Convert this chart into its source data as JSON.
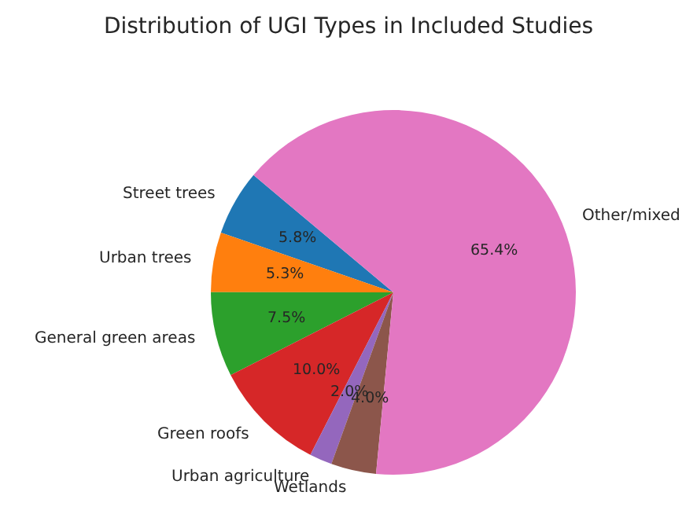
{
  "chart_data": {
    "type": "pie",
    "title": "Distribution of UGI Types in Included Studies",
    "categories": [
      "Street trees",
      "Urban trees",
      "General green areas",
      "Green roofs",
      "Urban agriculture",
      "Wetlands",
      "Other/mixed"
    ],
    "values": [
      5.8,
      5.3,
      7.5,
      10.0,
      2.0,
      4.0,
      65.4
    ],
    "value_labels": [
      "5.8%",
      "5.3%",
      "7.5%",
      "10.0%",
      "2.0%",
      "4.0%",
      "65.4%"
    ],
    "colors": [
      "#1f77b4",
      "#ff7f0e",
      "#2ca02c",
      "#d62728",
      "#9467bd",
      "#8c564b",
      "#e377c2"
    ],
    "legend": false
  }
}
